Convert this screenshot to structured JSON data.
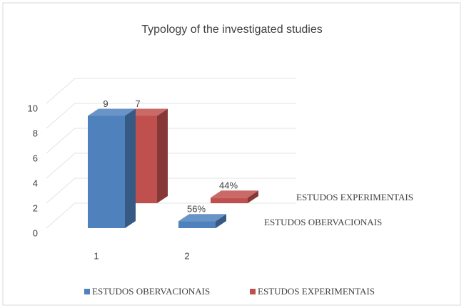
{
  "chart_data": {
    "type": "bar3d",
    "title": "Typology of the investigated studies",
    "categories": [
      "1",
      "2"
    ],
    "series": [
      {
        "name": "ESTUDOS OBERVACIONAIS",
        "color": "#4f81bd",
        "values": [
          9,
          0.56
        ],
        "value_labels": [
          "9",
          "56%"
        ]
      },
      {
        "name": "ESTUDOS EXPERIMENTAIS",
        "color": "#c0504d",
        "values": [
          7,
          0.44
        ],
        "value_labels": [
          "7",
          "44%"
        ]
      }
    ],
    "ylim": [
      0,
      10
    ],
    "yticks": [
      0,
      2,
      4,
      6,
      8,
      10
    ],
    "grid": true,
    "legend": "bottom"
  }
}
